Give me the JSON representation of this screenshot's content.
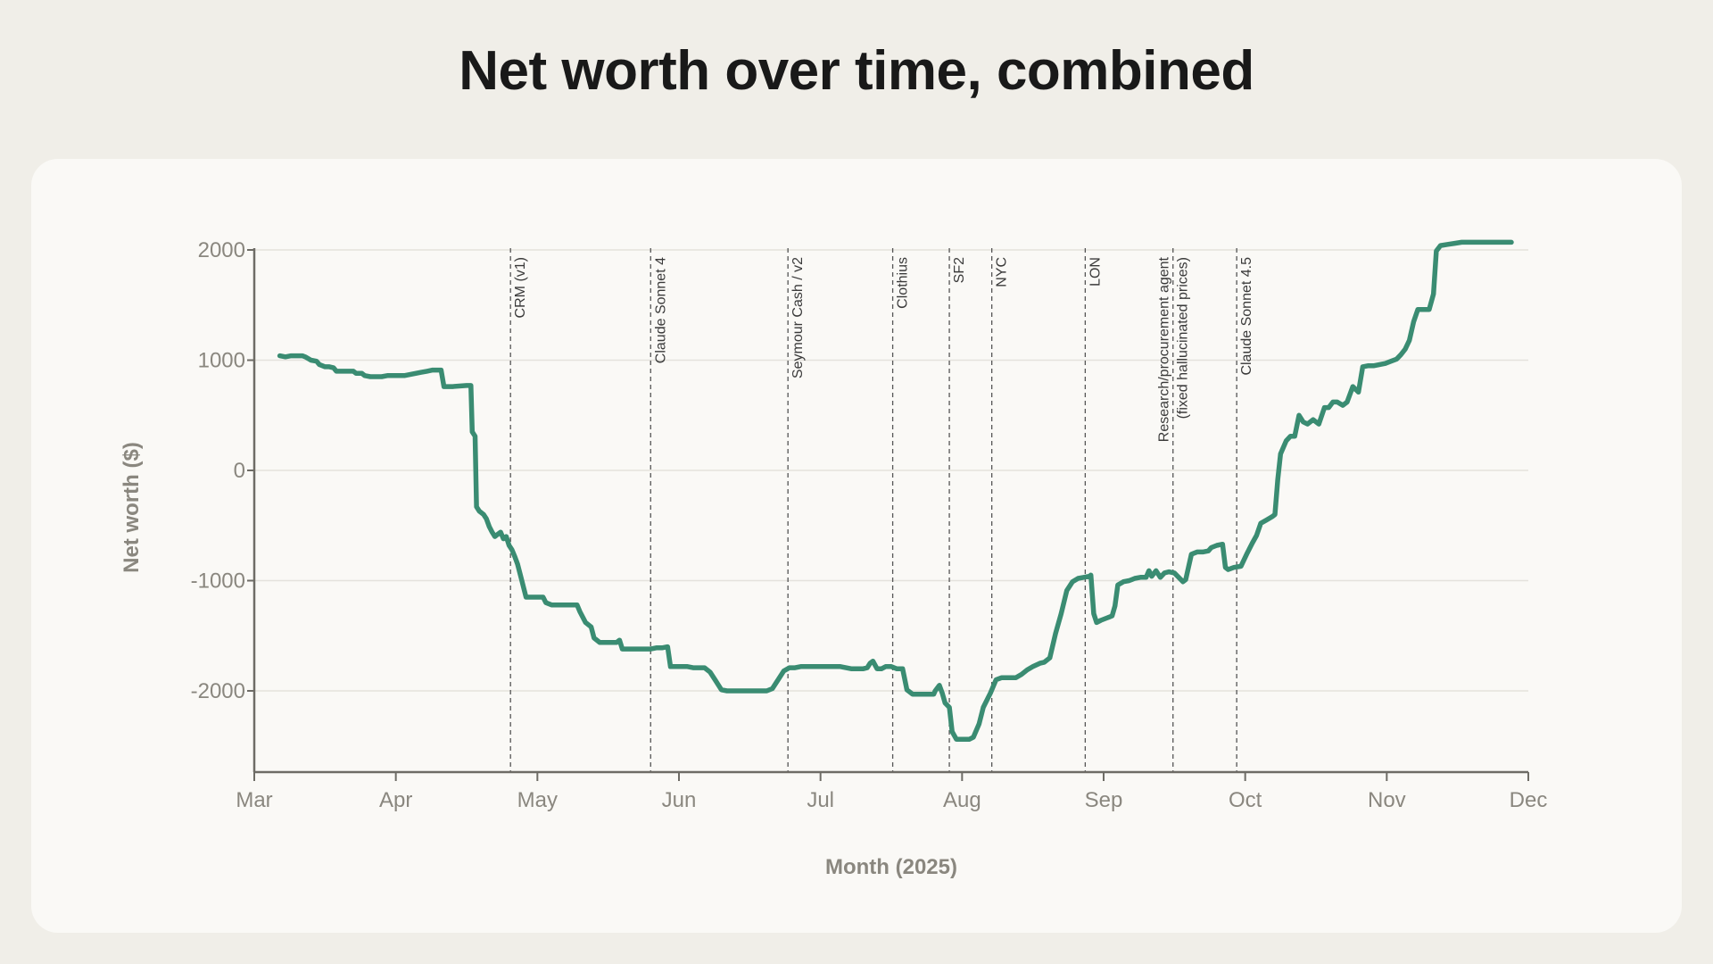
{
  "title": "Net worth over time, combined",
  "colors": {
    "line": "#3a8c72",
    "background": "#f0eee8",
    "card": "#faf9f6"
  },
  "chart_data": {
    "type": "line",
    "title": "Net worth over time, combined",
    "xlabel": "Month (2025)",
    "ylabel": "Net worth ($)",
    "x_unit": "months since Mar 1, 2025",
    "xlim": [
      0,
      9
    ],
    "ylim": [
      -2700,
      2000
    ],
    "x_tick_labels": [
      "Mar",
      "Apr",
      "May",
      "Jun",
      "Jul",
      "Aug",
      "Sep",
      "Oct",
      "Nov",
      "Dec"
    ],
    "y_ticks": [
      2000,
      1000,
      0,
      -1000,
      -2000
    ],
    "y_tick_labels": [
      "2000",
      "1000",
      "0",
      "-1000",
      "-2000"
    ],
    "grid": true,
    "events": [
      {
        "x": 1.81,
        "lines": [
          "CRM (v1)"
        ]
      },
      {
        "x": 2.8,
        "lines": [
          "Claude Sonnet 4"
        ]
      },
      {
        "x": 3.77,
        "lines": [
          "Seymour Cash / v2"
        ]
      },
      {
        "x": 4.51,
        "lines": [
          "Clothius"
        ]
      },
      {
        "x": 4.91,
        "lines": [
          "SF2"
        ]
      },
      {
        "x": 5.21,
        "lines": [
          "NYC"
        ]
      },
      {
        "x": 5.87,
        "lines": [
          "LON"
        ]
      },
      {
        "x": 6.49,
        "lines": [
          "Research/procurement agent",
          "(fixed hallucinated prices)"
        ]
      },
      {
        "x": 6.94,
        "lines": [
          "Claude Sonnet 4.5"
        ]
      }
    ],
    "series": [
      {
        "name": "Net worth",
        "points": [
          [
            0.18,
            1040
          ],
          [
            0.22,
            1030
          ],
          [
            0.26,
            1040
          ],
          [
            0.3,
            1040
          ],
          [
            0.34,
            1040
          ],
          [
            0.36,
            1030
          ],
          [
            0.4,
            1000
          ],
          [
            0.44,
            990
          ],
          [
            0.46,
            960
          ],
          [
            0.5,
            940
          ],
          [
            0.53,
            940
          ],
          [
            0.56,
            930
          ],
          [
            0.58,
            900
          ],
          [
            0.62,
            900
          ],
          [
            0.66,
            900
          ],
          [
            0.7,
            900
          ],
          [
            0.72,
            880
          ],
          [
            0.76,
            880
          ],
          [
            0.78,
            860
          ],
          [
            0.82,
            850
          ],
          [
            0.86,
            850
          ],
          [
            0.9,
            850
          ],
          [
            0.94,
            860
          ],
          [
            0.98,
            860
          ],
          [
            1.02,
            860
          ],
          [
            1.06,
            860
          ],
          [
            1.1,
            870
          ],
          [
            1.14,
            880
          ],
          [
            1.18,
            890
          ],
          [
            1.22,
            900
          ],
          [
            1.26,
            910
          ],
          [
            1.32,
            910
          ],
          [
            1.34,
            760
          ],
          [
            1.4,
            760
          ],
          [
            1.5,
            770
          ],
          [
            1.53,
            770
          ],
          [
            1.54,
            350
          ],
          [
            1.56,
            310
          ],
          [
            1.57,
            -330
          ],
          [
            1.59,
            -370
          ],
          [
            1.62,
            -400
          ],
          [
            1.64,
            -440
          ],
          [
            1.66,
            -510
          ],
          [
            1.68,
            -560
          ],
          [
            1.7,
            -600
          ],
          [
            1.72,
            -580
          ],
          [
            1.74,
            -560
          ],
          [
            1.76,
            -620
          ],
          [
            1.78,
            -600
          ],
          [
            1.8,
            -680
          ],
          [
            1.82,
            -720
          ],
          [
            1.84,
            -780
          ],
          [
            1.86,
            -850
          ],
          [
            1.88,
            -950
          ],
          [
            1.89,
            -1000
          ],
          [
            1.92,
            -1150
          ],
          [
            1.96,
            -1150
          ],
          [
            2.0,
            -1150
          ],
          [
            2.04,
            -1150
          ],
          [
            2.06,
            -1200
          ],
          [
            2.1,
            -1220
          ],
          [
            2.16,
            -1220
          ],
          [
            2.22,
            -1220
          ],
          [
            2.28,
            -1220
          ],
          [
            2.3,
            -1280
          ],
          [
            2.34,
            -1380
          ],
          [
            2.38,
            -1420
          ],
          [
            2.4,
            -1520
          ],
          [
            2.44,
            -1560
          ],
          [
            2.48,
            -1560
          ],
          [
            2.52,
            -1560
          ],
          [
            2.56,
            -1560
          ],
          [
            2.58,
            -1540
          ],
          [
            2.6,
            -1620
          ],
          [
            2.64,
            -1620
          ],
          [
            2.68,
            -1620
          ],
          [
            2.72,
            -1620
          ],
          [
            2.76,
            -1620
          ],
          [
            2.8,
            -1620
          ],
          [
            2.84,
            -1610
          ],
          [
            2.88,
            -1610
          ],
          [
            2.92,
            -1600
          ],
          [
            2.94,
            -1780
          ],
          [
            2.98,
            -1780
          ],
          [
            3.02,
            -1780
          ],
          [
            3.06,
            -1780
          ],
          [
            3.1,
            -1790
          ],
          [
            3.14,
            -1790
          ],
          [
            3.18,
            -1790
          ],
          [
            3.22,
            -1830
          ],
          [
            3.26,
            -1910
          ],
          [
            3.3,
            -1990
          ],
          [
            3.34,
            -2000
          ],
          [
            3.38,
            -2000
          ],
          [
            3.42,
            -2000
          ],
          [
            3.46,
            -2000
          ],
          [
            3.5,
            -2000
          ],
          [
            3.54,
            -2000
          ],
          [
            3.58,
            -2000
          ],
          [
            3.62,
            -2000
          ],
          [
            3.66,
            -1980
          ],
          [
            3.7,
            -1900
          ],
          [
            3.74,
            -1820
          ],
          [
            3.78,
            -1790
          ],
          [
            3.82,
            -1790
          ],
          [
            3.86,
            -1780
          ],
          [
            3.9,
            -1780
          ],
          [
            3.94,
            -1780
          ],
          [
            3.98,
            -1780
          ],
          [
            4.02,
            -1780
          ],
          [
            4.06,
            -1780
          ],
          [
            4.1,
            -1780
          ],
          [
            4.14,
            -1780
          ],
          [
            4.18,
            -1790
          ],
          [
            4.22,
            -1800
          ],
          [
            4.26,
            -1800
          ],
          [
            4.3,
            -1800
          ],
          [
            4.33,
            -1790
          ],
          [
            4.35,
            -1750
          ],
          [
            4.37,
            -1730
          ],
          [
            4.4,
            -1800
          ],
          [
            4.43,
            -1800
          ],
          [
            4.46,
            -1780
          ],
          [
            4.5,
            -1780
          ],
          [
            4.54,
            -1800
          ],
          [
            4.58,
            -1800
          ],
          [
            4.61,
            -1990
          ],
          [
            4.65,
            -2030
          ],
          [
            4.7,
            -2030
          ],
          [
            4.75,
            -2030
          ],
          [
            4.8,
            -2030
          ],
          [
            4.81,
            -2000
          ],
          [
            4.84,
            -1950
          ],
          [
            4.86,
            -2020
          ],
          [
            4.88,
            -2110
          ],
          [
            4.91,
            -2150
          ],
          [
            4.93,
            -2370
          ],
          [
            4.96,
            -2440
          ],
          [
            5.0,
            -2440
          ],
          [
            5.05,
            -2440
          ],
          [
            5.08,
            -2420
          ],
          [
            5.12,
            -2300
          ],
          [
            5.15,
            -2150
          ],
          [
            5.2,
            -2020
          ],
          [
            5.24,
            -1900
          ],
          [
            5.28,
            -1880
          ],
          [
            5.33,
            -1880
          ],
          [
            5.38,
            -1880
          ],
          [
            5.42,
            -1850
          ],
          [
            5.46,
            -1810
          ],
          [
            5.5,
            -1780
          ],
          [
            5.55,
            -1750
          ],
          [
            5.58,
            -1740
          ],
          [
            5.62,
            -1700
          ],
          [
            5.66,
            -1480
          ],
          [
            5.7,
            -1300
          ],
          [
            5.74,
            -1090
          ],
          [
            5.78,
            -1010
          ],
          [
            5.82,
            -980
          ],
          [
            5.86,
            -970
          ],
          [
            5.9,
            -960
          ],
          [
            5.91,
            -950
          ],
          [
            5.93,
            -1300
          ],
          [
            5.95,
            -1380
          ],
          [
            5.98,
            -1360
          ],
          [
            6.02,
            -1340
          ],
          [
            6.04,
            -1330
          ],
          [
            6.06,
            -1320
          ],
          [
            6.08,
            -1230
          ],
          [
            6.1,
            -1040
          ],
          [
            6.14,
            -1010
          ],
          [
            6.18,
            -1000
          ],
          [
            6.22,
            -980
          ],
          [
            6.26,
            -970
          ],
          [
            6.3,
            -970
          ],
          [
            6.32,
            -910
          ],
          [
            6.34,
            -960
          ],
          [
            6.37,
            -910
          ],
          [
            6.4,
            -970
          ],
          [
            6.43,
            -930
          ],
          [
            6.46,
            -920
          ],
          [
            6.5,
            -930
          ],
          [
            6.53,
            -970
          ],
          [
            6.56,
            -1010
          ],
          [
            6.58,
            -990
          ],
          [
            6.62,
            -760
          ],
          [
            6.66,
            -740
          ],
          [
            6.7,
            -740
          ],
          [
            6.74,
            -730
          ],
          [
            6.76,
            -700
          ],
          [
            6.8,
            -680
          ],
          [
            6.84,
            -670
          ],
          [
            6.86,
            -880
          ],
          [
            6.88,
            -900
          ],
          [
            6.92,
            -880
          ],
          [
            6.97,
            -870
          ],
          [
            7.01,
            -760
          ],
          [
            7.05,
            -660
          ],
          [
            7.08,
            -590
          ],
          [
            7.11,
            -480
          ],
          [
            7.15,
            -450
          ],
          [
            7.19,
            -420
          ],
          [
            7.21,
            -400
          ],
          [
            7.23,
            -80
          ],
          [
            7.25,
            150
          ],
          [
            7.29,
            270
          ],
          [
            7.32,
            310
          ],
          [
            7.35,
            310
          ],
          [
            7.38,
            500
          ],
          [
            7.41,
            440
          ],
          [
            7.44,
            420
          ],
          [
            7.48,
            460
          ],
          [
            7.52,
            420
          ],
          [
            7.56,
            570
          ],
          [
            7.59,
            570
          ],
          [
            7.62,
            620
          ],
          [
            7.65,
            620
          ],
          [
            7.69,
            590
          ],
          [
            7.72,
            620
          ],
          [
            7.76,
            760
          ],
          [
            7.8,
            710
          ],
          [
            7.83,
            940
          ],
          [
            7.87,
            950
          ],
          [
            7.91,
            950
          ],
          [
            7.95,
            960
          ],
          [
            7.99,
            970
          ],
          [
            8.03,
            990
          ],
          [
            8.07,
            1010
          ],
          [
            8.1,
            1050
          ],
          [
            8.13,
            1100
          ],
          [
            8.16,
            1180
          ],
          [
            8.19,
            1350
          ],
          [
            8.22,
            1460
          ],
          [
            8.26,
            1460
          ],
          [
            8.3,
            1460
          ],
          [
            8.33,
            1600
          ],
          [
            8.35,
            1990
          ],
          [
            8.38,
            2040
          ],
          [
            8.43,
            2050
          ],
          [
            8.48,
            2060
          ],
          [
            8.53,
            2070
          ],
          [
            8.6,
            2070
          ],
          [
            8.7,
            2070
          ],
          [
            8.8,
            2070
          ],
          [
            8.88,
            2070
          ]
        ]
      }
    ]
  }
}
